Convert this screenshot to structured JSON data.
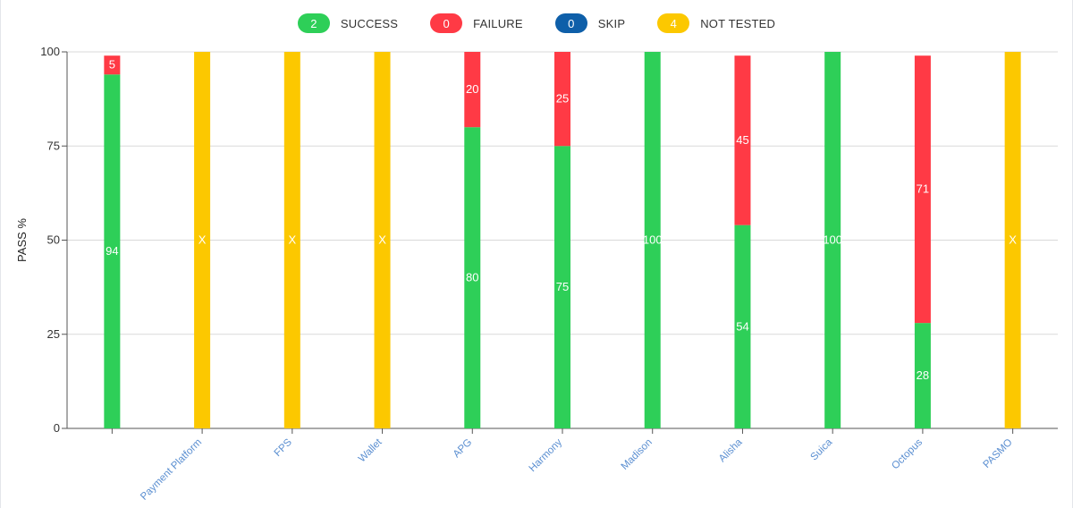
{
  "legend": [
    {
      "count": "2",
      "label": "SUCCESS",
      "color": "#2ecf58"
    },
    {
      "count": "0",
      "label": "FAILURE",
      "color": "#ff3a45"
    },
    {
      "count": "0",
      "label": "SKIP",
      "color": "#0e5fa9"
    },
    {
      "count": "4",
      "label": "NOT TESTED",
      "color": "#fcc800"
    }
  ],
  "colors": {
    "success": "#2ecf58",
    "failure": "#ff3a45",
    "not_tested": "#fcc800",
    "grid": "#d9d9d9",
    "axis": "#555555"
  },
  "chart_data": {
    "type": "bar",
    "stacked": true,
    "ylabel": "PASS %",
    "ylim": [
      0,
      100
    ],
    "yticks": [
      0,
      25,
      50,
      75,
      100
    ],
    "grid": true,
    "not_tested_mark": "X",
    "categories": [
      "",
      "Payment Platform",
      "FPS",
      "Wallet",
      "APG",
      "Harmony",
      "Madison",
      "Alisha",
      "Suica",
      "Octopus",
      "PASMO"
    ],
    "series": [
      {
        "name": "Success",
        "key": "success",
        "values": [
          94,
          null,
          null,
          null,
          80,
          75,
          100,
          54,
          100,
          28,
          null
        ]
      },
      {
        "name": "Failure",
        "key": "failure",
        "values": [
          5,
          null,
          null,
          null,
          20,
          25,
          0,
          45,
          0,
          71,
          null
        ]
      },
      {
        "name": "Not Tested",
        "key": "not_tested",
        "values": [
          null,
          100,
          100,
          100,
          null,
          null,
          null,
          null,
          null,
          null,
          100
        ]
      }
    ]
  }
}
